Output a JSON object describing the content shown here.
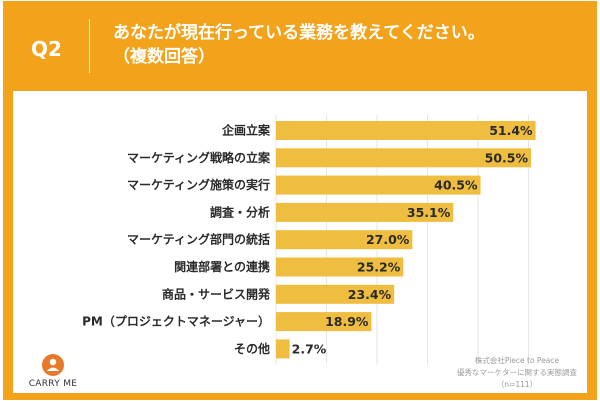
{
  "header": {
    "question_id": "Q2",
    "title_line1": "あなたが現在行っている業務を教えてください。",
    "title_line2": "（複数回答）"
  },
  "colors": {
    "frame": "#f2a31b",
    "bar": "#efbd3f",
    "logo_orange": "#e8792b"
  },
  "brand": {
    "logo_icon": "carry-me-logo-icon",
    "name": "CARRY ME"
  },
  "source": {
    "line1": "株式会社Piece to Peace",
    "line2": "優秀なマーケターに関する実態調査",
    "line3": "（n=111）"
  },
  "chart_data": {
    "type": "bar",
    "orientation": "horizontal",
    "categories": [
      "企画立案",
      "マーケティング戦略の立案",
      "マーケティング施策の実行",
      "調査・分析",
      "マーケティング部門の統括",
      "関連部署との連携",
      "商品・サービス開発",
      "PM（プロジェクトマネージャー）",
      "その他"
    ],
    "values": [
      51.4,
      50.5,
      40.5,
      35.1,
      27.0,
      25.2,
      23.4,
      18.9,
      2.7
    ],
    "value_labels": [
      "51.4%",
      "50.5%",
      "40.5%",
      "35.1%",
      "27.0%",
      "25.2%",
      "23.4%",
      "18.9%",
      "2.7%"
    ],
    "xlim": [
      0,
      100
    ],
    "grid": true,
    "legend": "none"
  }
}
